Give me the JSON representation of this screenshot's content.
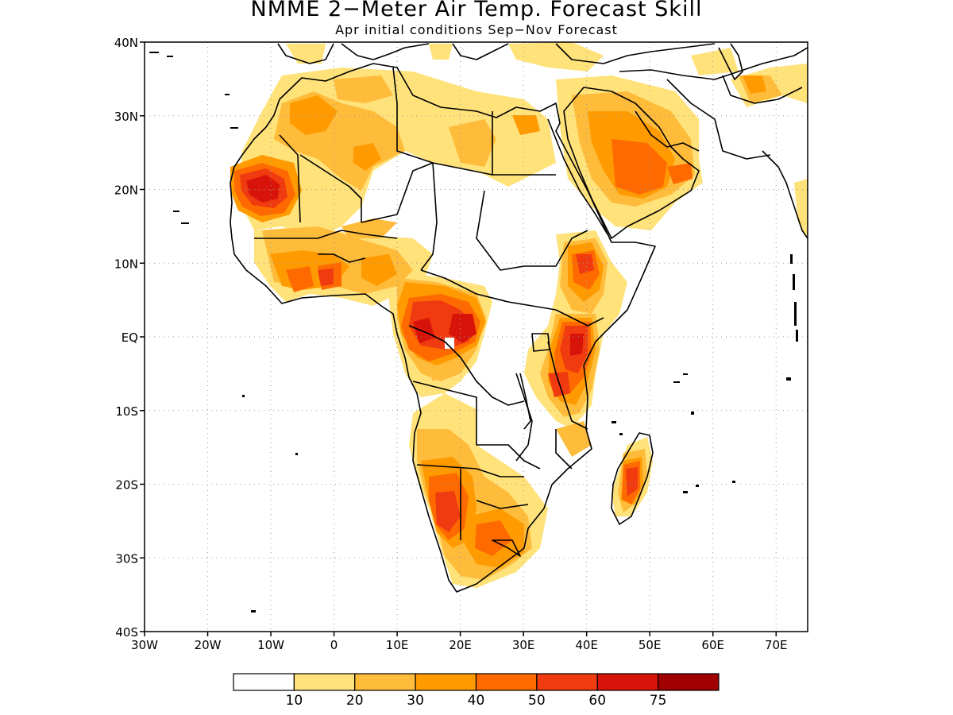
{
  "title": "NMME 2−Meter Air Temp. Forecast Skill",
  "subtitle": "Apr initial conditions   Sep−Nov Forecast",
  "map": {
    "lon_range": [
      -30,
      75
    ],
    "lat_range": [
      -40,
      40
    ],
    "lat_ticks": [
      {
        "value": 40,
        "label": "40N"
      },
      {
        "value": 30,
        "label": "30N"
      },
      {
        "value": 20,
        "label": "20N"
      },
      {
        "value": 10,
        "label": "10N"
      },
      {
        "value": 0,
        "label": "EQ"
      },
      {
        "value": -10,
        "label": "10S"
      },
      {
        "value": -20,
        "label": "20S"
      },
      {
        "value": -30,
        "label": "30S"
      },
      {
        "value": -40,
        "label": "40S"
      }
    ],
    "lon_ticks": [
      {
        "value": -30,
        "label": "30W"
      },
      {
        "value": -20,
        "label": "20W"
      },
      {
        "value": -10,
        "label": "10W"
      },
      {
        "value": 0,
        "label": "0"
      },
      {
        "value": 10,
        "label": "10E"
      },
      {
        "value": 20,
        "label": "20E"
      },
      {
        "value": 30,
        "label": "30E"
      },
      {
        "value": 40,
        "label": "40E"
      },
      {
        "value": 50,
        "label": "50E"
      },
      {
        "value": 60,
        "label": "60E"
      },
      {
        "value": 70,
        "label": "70E"
      }
    ],
    "grid": "dotted"
  },
  "colorbar": {
    "colors": [
      "#ffffff",
      "#ffe27a",
      "#ffbb3a",
      "#ff9b00",
      "#ff6a00",
      "#f03a10",
      "#d8140a",
      "#a00000"
    ],
    "labels": [
      "10",
      "20",
      "30",
      "40",
      "50",
      "60",
      "75"
    ]
  }
}
